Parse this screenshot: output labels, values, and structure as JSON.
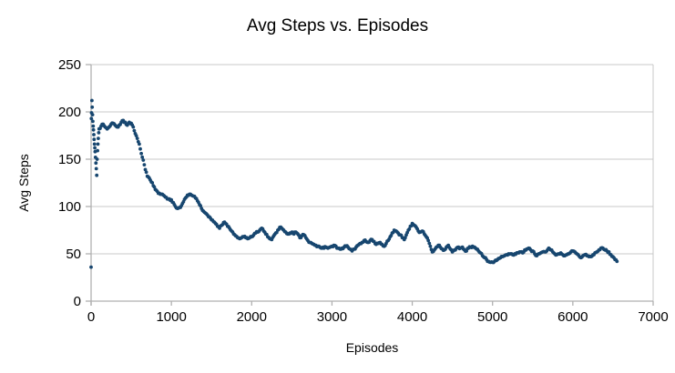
{
  "chart_data": {
    "type": "scatter",
    "title": "Avg Steps vs. Episodes",
    "xlabel": "Episodes",
    "ylabel": "Avg Steps",
    "xlim": [
      0,
      7000
    ],
    "ylim": [
      0,
      250
    ],
    "x_ticks": [
      0,
      1000,
      2000,
      3000,
      4000,
      5000,
      6000,
      7000
    ],
    "y_ticks": [
      0,
      50,
      100,
      150,
      200,
      250
    ],
    "grid": "horizontal",
    "legend": "none",
    "background_color": "#ffffff",
    "point_color": "#17466f",
    "axis_color": "#b0b0b0",
    "grid_color": "#c8c8c8",
    "text_color": "#000000",
    "initial_points": [
      [
        0,
        36
      ],
      [
        3,
        193
      ],
      [
        6,
        199
      ],
      [
        10,
        212
      ],
      [
        14,
        205
      ],
      [
        18,
        197
      ],
      [
        22,
        190
      ],
      [
        26,
        185
      ],
      [
        30,
        181
      ],
      [
        34,
        176
      ],
      [
        38,
        171
      ],
      [
        42,
        166
      ],
      [
        46,
        162
      ],
      [
        50,
        158
      ],
      [
        55,
        152
      ],
      [
        60,
        146
      ],
      [
        65,
        140
      ],
      [
        70,
        133
      ],
      [
        75,
        150
      ],
      [
        80,
        159
      ],
      [
        85,
        166
      ],
      [
        90,
        172
      ],
      [
        95,
        178
      ]
    ],
    "points": [
      [
        100,
        182
      ],
      [
        125,
        185
      ],
      [
        150,
        187
      ],
      [
        175,
        184
      ],
      [
        200,
        182
      ],
      [
        225,
        184
      ],
      [
        250,
        187
      ],
      [
        275,
        188
      ],
      [
        300,
        186
      ],
      [
        325,
        184
      ],
      [
        350,
        186
      ],
      [
        375,
        189
      ],
      [
        400,
        191
      ],
      [
        425,
        189
      ],
      [
        450,
        186
      ],
      [
        475,
        189
      ],
      [
        500,
        188
      ],
      [
        525,
        184
      ],
      [
        550,
        177
      ],
      [
        575,
        172
      ],
      [
        600,
        166
      ],
      [
        625,
        156
      ],
      [
        650,
        149
      ],
      [
        675,
        139
      ],
      [
        700,
        132
      ],
      [
        725,
        130
      ],
      [
        750,
        126
      ],
      [
        775,
        122
      ],
      [
        800,
        118
      ],
      [
        825,
        116
      ],
      [
        850,
        114
      ],
      [
        875,
        113
      ],
      [
        900,
        112
      ],
      [
        925,
        110
      ],
      [
        950,
        108
      ],
      [
        975,
        108
      ],
      [
        1000,
        107
      ],
      [
        1025,
        104
      ],
      [
        1050,
        100
      ],
      [
        1075,
        98
      ],
      [
        1100,
        99
      ],
      [
        1125,
        101
      ],
      [
        1150,
        105
      ],
      [
        1175,
        109
      ],
      [
        1200,
        112
      ],
      [
        1225,
        113
      ],
      [
        1250,
        112
      ],
      [
        1275,
        111
      ],
      [
        1300,
        109
      ],
      [
        1325,
        106
      ],
      [
        1350,
        102
      ],
      [
        1375,
        98
      ],
      [
        1400,
        95
      ],
      [
        1425,
        93
      ],
      [
        1450,
        91
      ],
      [
        1475,
        89
      ],
      [
        1500,
        86
      ],
      [
        1525,
        84
      ],
      [
        1550,
        82
      ],
      [
        1575,
        79
      ],
      [
        1600,
        77
      ],
      [
        1625,
        80
      ],
      [
        1650,
        83
      ],
      [
        1675,
        82
      ],
      [
        1700,
        79
      ],
      [
        1725,
        77
      ],
      [
        1750,
        74
      ],
      [
        1775,
        71
      ],
      [
        1800,
        69
      ],
      [
        1825,
        67
      ],
      [
        1850,
        66
      ],
      [
        1875,
        67
      ],
      [
        1900,
        68
      ],
      [
        1925,
        67
      ],
      [
        1950,
        66
      ],
      [
        1975,
        67
      ],
      [
        2000,
        68
      ],
      [
        2025,
        70
      ],
      [
        2050,
        72
      ],
      [
        2075,
        73
      ],
      [
        2100,
        75
      ],
      [
        2125,
        77
      ],
      [
        2150,
        74
      ],
      [
        2175,
        71
      ],
      [
        2200,
        68
      ],
      [
        2225,
        66
      ],
      [
        2250,
        65
      ],
      [
        2275,
        69
      ],
      [
        2300,
        72
      ],
      [
        2325,
        75
      ],
      [
        2350,
        78
      ],
      [
        2375,
        77
      ],
      [
        2400,
        75
      ],
      [
        2425,
        73
      ],
      [
        2450,
        71
      ],
      [
        2475,
        72
      ],
      [
        2500,
        73
      ],
      [
        2525,
        71
      ],
      [
        2550,
        73
      ],
      [
        2575,
        71
      ],
      [
        2600,
        67
      ],
      [
        2625,
        69
      ],
      [
        2650,
        70
      ],
      [
        2675,
        67
      ],
      [
        2700,
        64
      ],
      [
        2725,
        62
      ],
      [
        2750,
        61
      ],
      [
        2775,
        60
      ],
      [
        2800,
        59
      ],
      [
        2825,
        58
      ],
      [
        2850,
        57
      ],
      [
        2875,
        56
      ],
      [
        2900,
        56
      ],
      [
        2925,
        57
      ],
      [
        2950,
        56
      ],
      [
        2975,
        57
      ],
      [
        3000,
        58
      ],
      [
        3025,
        59
      ],
      [
        3050,
        58
      ],
      [
        3075,
        56
      ],
      [
        3100,
        55
      ],
      [
        3125,
        56
      ],
      [
        3150,
        57
      ],
      [
        3175,
        58
      ],
      [
        3200,
        57
      ],
      [
        3225,
        55
      ],
      [
        3250,
        53
      ],
      [
        3275,
        55
      ],
      [
        3300,
        57
      ],
      [
        3325,
        59
      ],
      [
        3350,
        61
      ],
      [
        3375,
        62
      ],
      [
        3400,
        64
      ],
      [
        3425,
        63
      ],
      [
        3450,
        62
      ],
      [
        3475,
        64
      ],
      [
        3500,
        65
      ],
      [
        3525,
        63
      ],
      [
        3550,
        60
      ],
      [
        3575,
        61
      ],
      [
        3600,
        62
      ],
      [
        3625,
        60
      ],
      [
        3650,
        58
      ],
      [
        3675,
        61
      ],
      [
        3700,
        64
      ],
      [
        3725,
        68
      ],
      [
        3750,
        72
      ],
      [
        3775,
        75
      ],
      [
        3800,
        74
      ],
      [
        3825,
        72
      ],
      [
        3850,
        70
      ],
      [
        3875,
        67
      ],
      [
        3900,
        65
      ],
      [
        3925,
        70
      ],
      [
        3950,
        75
      ],
      [
        3975,
        79
      ],
      [
        4000,
        82
      ],
      [
        4025,
        80
      ],
      [
        4050,
        78
      ],
      [
        4075,
        74
      ],
      [
        4100,
        73
      ],
      [
        4125,
        74
      ],
      [
        4150,
        71
      ],
      [
        4175,
        68
      ],
      [
        4200,
        64
      ],
      [
        4225,
        58
      ],
      [
        4250,
        52
      ],
      [
        4275,
        54
      ],
      [
        4300,
        57
      ],
      [
        4325,
        59
      ],
      [
        4350,
        57
      ],
      [
        4375,
        55
      ],
      [
        4400,
        54
      ],
      [
        4425,
        57
      ],
      [
        4450,
        59
      ],
      [
        4475,
        55
      ],
      [
        4500,
        52
      ],
      [
        4525,
        54
      ],
      [
        4550,
        56
      ],
      [
        4575,
        57
      ],
      [
        4600,
        56
      ],
      [
        4625,
        57
      ],
      [
        4650,
        54
      ],
      [
        4675,
        53
      ],
      [
        4700,
        56
      ],
      [
        4725,
        57
      ],
      [
        4750,
        58
      ],
      [
        4775,
        57
      ],
      [
        4800,
        55
      ],
      [
        4825,
        53
      ],
      [
        4850,
        51
      ],
      [
        4875,
        48
      ],
      [
        4900,
        46
      ],
      [
        4925,
        44
      ],
      [
        4950,
        42
      ],
      [
        4975,
        41
      ],
      [
        5000,
        41
      ],
      [
        5025,
        42
      ],
      [
        5050,
        43
      ],
      [
        5075,
        45
      ],
      [
        5100,
        46
      ],
      [
        5125,
        47
      ],
      [
        5150,
        48
      ],
      [
        5175,
        49
      ],
      [
        5200,
        50
      ],
      [
        5225,
        50
      ],
      [
        5250,
        49
      ],
      [
        5275,
        50
      ],
      [
        5300,
        51
      ],
      [
        5325,
        51
      ],
      [
        5350,
        52
      ],
      [
        5375,
        51
      ],
      [
        5400,
        54
      ],
      [
        5425,
        55
      ],
      [
        5450,
        56
      ],
      [
        5475,
        54
      ],
      [
        5500,
        53
      ],
      [
        5525,
        50
      ],
      [
        5550,
        48
      ],
      [
        5575,
        50
      ],
      [
        5600,
        51
      ],
      [
        5625,
        52
      ],
      [
        5650,
        52
      ],
      [
        5675,
        53
      ],
      [
        5700,
        56
      ],
      [
        5725,
        54
      ],
      [
        5750,
        52
      ],
      [
        5775,
        50
      ],
      [
        5800,
        49
      ],
      [
        5825,
        50
      ],
      [
        5850,
        51
      ],
      [
        5875,
        49
      ],
      [
        5900,
        48
      ],
      [
        5925,
        49
      ],
      [
        5950,
        50
      ],
      [
        5975,
        52
      ],
      [
        6000,
        53
      ],
      [
        6025,
        52
      ],
      [
        6050,
        50
      ],
      [
        6075,
        48
      ],
      [
        6100,
        46
      ],
      [
        6125,
        48
      ],
      [
        6150,
        49
      ],
      [
        6175,
        48
      ],
      [
        6200,
        47
      ],
      [
        6225,
        47
      ],
      [
        6250,
        49
      ],
      [
        6275,
        51
      ],
      [
        6300,
        52
      ],
      [
        6325,
        54
      ],
      [
        6350,
        56
      ],
      [
        6375,
        56
      ],
      [
        6400,
        54
      ],
      [
        6425,
        53
      ],
      [
        6450,
        52
      ],
      [
        6475,
        49
      ],
      [
        6500,
        47
      ],
      [
        6525,
        44
      ],
      [
        6550,
        42
      ]
    ]
  }
}
